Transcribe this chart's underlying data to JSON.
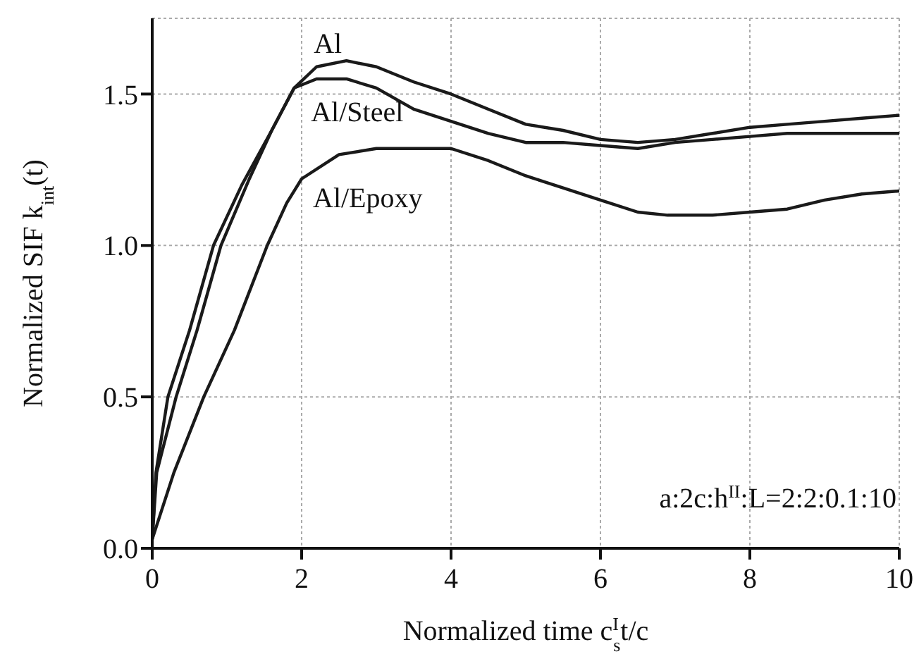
{
  "chart_data": {
    "type": "line",
    "xlabel": "Normalized time c$^{I}$$_{s}$t/c",
    "ylabel": "Normalized SIF k$_{int}$(t)",
    "annotations": [
      "a:2c:h$^{II}$:L=2:2:0.1:10"
    ],
    "xlim": [
      0,
      10
    ],
    "xticks": [
      0,
      2,
      4,
      6,
      8,
      10
    ],
    "ylim": [
      0,
      1.75
    ],
    "yticks": [
      {
        "value": 0,
        "label": "0.0"
      },
      0.5,
      {
        "value": 1,
        "label": "1.0"
      },
      1.5
    ],
    "grid": true,
    "marker": "none",
    "line_style": "solid",
    "series": [
      {
        "name": "Al",
        "color": "#1a1a1a",
        "x": [
          0,
          0.05,
          0.21,
          0.5,
          0.82,
          1.2,
          1.6,
          1.9,
          2.2,
          2.6,
          3,
          3.5,
          4,
          4.5,
          5,
          5.5,
          6,
          6.5,
          7,
          7.5,
          8,
          8.5,
          9,
          9.5,
          10
        ],
        "values": [
          0.03,
          0.25,
          0.5,
          0.72,
          1.0,
          1.2,
          1.38,
          1.52,
          1.59,
          1.61,
          1.59,
          1.54,
          1.5,
          1.45,
          1.4,
          1.38,
          1.35,
          1.34,
          1.35,
          1.37,
          1.39,
          1.4,
          1.41,
          1.42,
          1.43
        ]
      },
      {
        "name": "Al/Steel",
        "color": "#1a1a1a",
        "x": [
          0,
          0.06,
          0.32,
          0.6,
          0.92,
          1.3,
          1.6,
          1.9,
          2.2,
          2.6,
          3,
          3.5,
          4,
          4.5,
          5,
          5.5,
          6,
          6.5,
          7,
          7.5,
          8,
          8.5,
          9,
          9.5,
          10
        ],
        "values": [
          0.03,
          0.25,
          0.5,
          0.72,
          1.0,
          1.22,
          1.38,
          1.52,
          1.55,
          1.55,
          1.52,
          1.45,
          1.41,
          1.37,
          1.34,
          1.34,
          1.33,
          1.32,
          1.34,
          1.35,
          1.36,
          1.37,
          1.37,
          1.37,
          1.37
        ]
      },
      {
        "name": "Al/Epoxy",
        "color": "#1a1a1a",
        "x": [
          0,
          0.29,
          0.69,
          1.1,
          1.54,
          1.8,
          2,
          2.5,
          3,
          3.5,
          4,
          4.5,
          5,
          5.5,
          6,
          6.5,
          6.9,
          7.5,
          8,
          8.5,
          9,
          9.5,
          10
        ],
        "values": [
          0.03,
          0.25,
          0.5,
          0.72,
          1.0,
          1.14,
          1.22,
          1.3,
          1.32,
          1.32,
          1.32,
          1.28,
          1.23,
          1.19,
          1.15,
          1.11,
          1.1,
          1.1,
          1.11,
          1.12,
          1.15,
          1.17,
          1.18
        ]
      }
    ]
  }
}
